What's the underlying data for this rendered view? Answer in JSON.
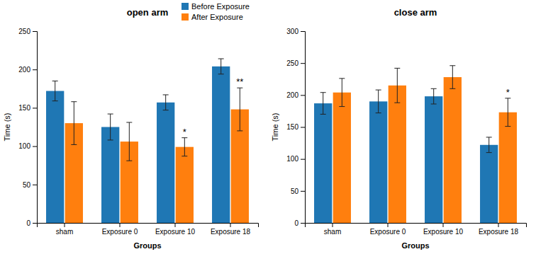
{
  "chart_data": [
    {
      "type": "bar",
      "title": "open arm",
      "xlabel": "Groups",
      "ylabel": "Time (s)",
      "categories": [
        "sham",
        "Exposure 0",
        "Exposure 10",
        "Exposure 18"
      ],
      "series": [
        {
          "name": "Before Exposure",
          "values": [
            172,
            125,
            157,
            204
          ],
          "errors": [
            13,
            17,
            10,
            10
          ]
        },
        {
          "name": "After Exposure",
          "values": [
            130,
            106,
            99,
            148
          ],
          "errors": [
            28,
            25,
            12,
            28
          ]
        }
      ],
      "ylim": [
        0,
        250
      ],
      "yticks": [
        0,
        50,
        100,
        150,
        200,
        250
      ],
      "annotations": [
        {
          "series": 1,
          "index": 2,
          "text": "*"
        },
        {
          "series": 1,
          "index": 3,
          "text": "**"
        }
      ],
      "legend": "upper right"
    },
    {
      "type": "bar",
      "title": "close arm",
      "xlabel": "Groups",
      "ylabel": "Time (s)",
      "categories": [
        "sham",
        "Exposure 0",
        "Exposure 10",
        "Exposure 18"
      ],
      "series": [
        {
          "values": [
            187,
            190,
            198,
            122
          ],
          "errors": [
            17,
            18,
            12,
            12
          ]
        },
        {
          "values": [
            204,
            215,
            228,
            173
          ],
          "errors": [
            22,
            27,
            18,
            22
          ]
        }
      ],
      "ylim": [
        0,
        300
      ],
      "yticks": [
        0,
        50,
        100,
        150,
        200,
        250,
        300
      ],
      "annotations": [
        {
          "series": 1,
          "index": 3,
          "text": "*"
        }
      ]
    }
  ]
}
